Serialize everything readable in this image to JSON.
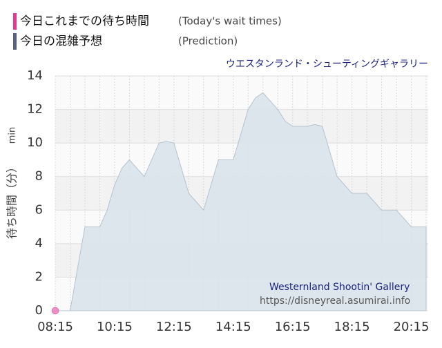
{
  "chart_data": {
    "type": "area",
    "title": "ウエスタンランド・シューティングギャラリー",
    "ylabel": "待ち時間（分）",
    "ylabel_unit": "min",
    "watermark": "Westernland Shootin' Gallery",
    "source": "https://disneyreal.asumirai.info",
    "categories": [
      "08:15",
      null,
      null,
      null,
      null,
      null,
      null,
      null,
      "10:15",
      null,
      null,
      null,
      null,
      null,
      null,
      null,
      "12:15",
      null,
      null,
      null,
      null,
      null,
      null,
      null,
      "14:15",
      null,
      null,
      null,
      null,
      null,
      null,
      null,
      "16:15",
      null,
      null,
      null,
      null,
      null,
      null,
      null,
      "18:15",
      null,
      null,
      null,
      null,
      null,
      null,
      null,
      "20:15",
      null,
      null
    ],
    "ylim": [
      0,
      14
    ],
    "yticks": [
      0,
      2,
      4,
      6,
      8,
      10,
      12,
      14
    ],
    "grid": true,
    "series": [
      {
        "name": "今日これまでの待ち時間",
        "name_en": "(Today's wait times)",
        "color": "#e4388f",
        "values": [
          0,
          null,
          null,
          null,
          null,
          null,
          null,
          null,
          null,
          null,
          null,
          null,
          null,
          null,
          null,
          null,
          null,
          null,
          null,
          null,
          null,
          null,
          null,
          null,
          null,
          null,
          null,
          null,
          null,
          null,
          null,
          null,
          null,
          null,
          null,
          null,
          null,
          null,
          null,
          null,
          null,
          null,
          null,
          null,
          null,
          null,
          null,
          null,
          null,
          null,
          null
        ]
      },
      {
        "name": "今日の混雑予想",
        "name_en": "(Prediction)",
        "color": "#5a5f86",
        "values": [
          0,
          0,
          0,
          2.5,
          5,
          5,
          5,
          6,
          7.5,
          8.5,
          9,
          8.5,
          8,
          9,
          10,
          10.1,
          10,
          8.5,
          7,
          6.5,
          6,
          7.5,
          9,
          9,
          9,
          10.5,
          12,
          12.7,
          13,
          12.5,
          12,
          11.3,
          11,
          11,
          11,
          11.1,
          11,
          9.5,
          8,
          7.5,
          7,
          7,
          7,
          6.5,
          6,
          6,
          6,
          5.5,
          5,
          5,
          5
        ]
      }
    ]
  }
}
